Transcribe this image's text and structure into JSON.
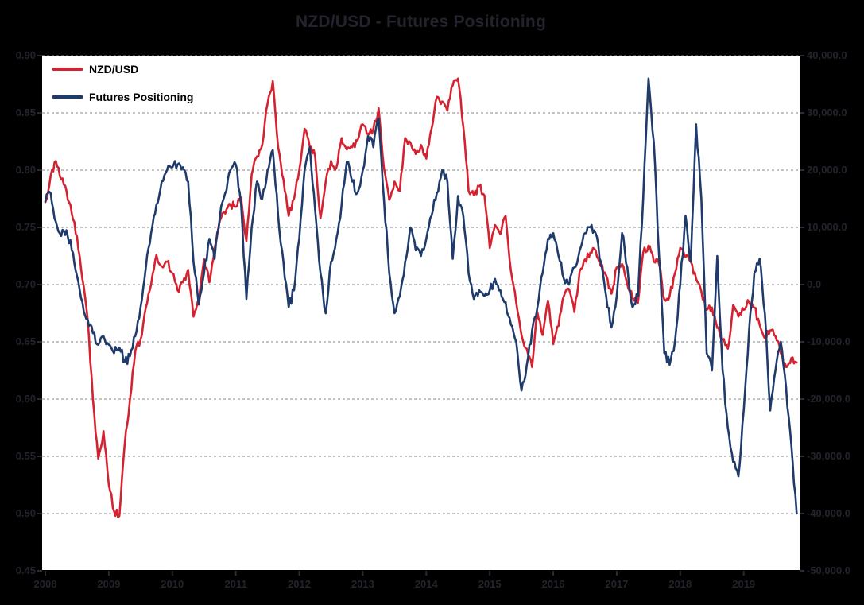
{
  "style": {
    "page_bg": "#000000",
    "plot_bg": "#ffffff",
    "outside_text": "#23232e",
    "grid_color": "#8a8a8a",
    "axis_line_color": "#000000",
    "tick_color": "#2b2b35",
    "legend_text": "#000000"
  },
  "chart_data": {
    "type": "line",
    "title": "NZD/USD - Futures Positioning",
    "legend": {
      "position": "top-left-inside",
      "entries": [
        "NZD/USD",
        "Futures Positioning"
      ]
    },
    "grid": {
      "horizontal": true,
      "style": "dashed"
    },
    "x_axis": {
      "tick_labels": [
        "2008",
        "2009",
        "2010",
        "2011",
        "2012",
        "2013",
        "2014",
        "2015",
        "2016",
        "2017",
        "2018",
        "2019"
      ],
      "range_start": 2007.95,
      "range_end": 2019.88
    },
    "left_y_axis": {
      "series": "NZD/USD",
      "min": 0.45,
      "max": 0.9,
      "tick_step": 0.05,
      "tick_labels": [
        "0.90",
        "0.85",
        "0.80",
        "0.75",
        "0.70",
        "0.65",
        "0.60",
        "0.55",
        "0.50",
        "0.45"
      ]
    },
    "right_y_axis": {
      "series": "Futures Positioning",
      "min": -50000,
      "max": 40000,
      "tick_step": 10000,
      "tick_labels": [
        "40,000.0",
        "30,000.0",
        "20,000.0",
        "10,000.0",
        "0.0",
        "-10,000.0",
        "-20,000.0",
        "-30,000.0",
        "-40,000.0",
        "-50,000.0"
      ]
    },
    "series": [
      {
        "name": "NZD/USD",
        "axis": "left",
        "color": "#d52231",
        "start_year": 2008,
        "points_per_year": 12,
        "values": [
          0.772,
          0.795,
          0.808,
          0.792,
          0.782,
          0.762,
          0.742,
          0.705,
          0.67,
          0.6,
          0.548,
          0.572,
          0.525,
          0.502,
          0.498,
          0.56,
          0.6,
          0.642,
          0.652,
          0.68,
          0.7,
          0.726,
          0.716,
          0.72,
          0.71,
          0.695,
          0.702,
          0.713,
          0.672,
          0.688,
          0.722,
          0.702,
          0.732,
          0.756,
          0.762,
          0.77,
          0.768,
          0.776,
          0.738,
          0.796,
          0.812,
          0.822,
          0.858,
          0.878,
          0.82,
          0.792,
          0.76,
          0.775,
          0.8,
          0.836,
          0.82,
          0.812,
          0.758,
          0.79,
          0.808,
          0.802,
          0.828,
          0.818,
          0.82,
          0.826,
          0.84,
          0.832,
          0.836,
          0.854,
          0.802,
          0.774,
          0.79,
          0.782,
          0.828,
          0.824,
          0.814,
          0.822,
          0.81,
          0.836,
          0.864,
          0.86,
          0.852,
          0.874,
          0.88,
          0.838,
          0.782,
          0.778,
          0.786,
          0.778,
          0.732,
          0.752,
          0.744,
          0.76,
          0.712,
          0.684,
          0.656,
          0.644,
          0.628,
          0.676,
          0.656,
          0.686,
          0.648,
          0.664,
          0.69,
          0.696,
          0.676,
          0.712,
          0.722,
          0.728,
          0.73,
          0.716,
          0.708,
          0.692,
          0.715,
          0.718,
          0.7,
          0.688,
          0.684,
          0.728,
          0.734,
          0.72,
          0.718,
          0.687,
          0.69,
          0.71,
          0.732,
          0.724,
          0.72,
          0.705,
          0.694,
          0.678,
          0.68,
          0.662,
          0.652,
          0.644,
          0.682,
          0.672,
          0.678,
          0.685,
          0.68,
          0.665,
          0.653,
          0.66,
          0.655,
          0.64,
          0.628,
          0.636,
          0.632
        ]
      },
      {
        "name": "Futures Positioning",
        "axis": "right",
        "color": "#1f3b6b",
        "start_year": 2008,
        "points_per_year": 12,
        "values": [
          14500,
          16000,
          11000,
          8500,
          9500,
          6000,
          1500,
          -3000,
          -6000,
          -8500,
          -10500,
          -9000,
          -10500,
          -12000,
          -11000,
          -13500,
          -12500,
          -9000,
          -4000,
          3000,
          9000,
          14000,
          18000,
          20000,
          20500,
          21000,
          20500,
          18000,
          4000,
          -3500,
          2000,
          8000,
          4500,
          12000,
          16000,
          20000,
          21000,
          14000,
          -2500,
          10000,
          18000,
          15000,
          20000,
          23500,
          12000,
          4000,
          -4000,
          -1000,
          8000,
          20000,
          24000,
          13000,
          2000,
          -5000,
          4000,
          8000,
          14000,
          21500,
          18000,
          16000,
          20000,
          26000,
          24000,
          29000,
          15000,
          2000,
          -5000,
          -2000,
          4000,
          10000,
          6000,
          5000,
          8000,
          12000,
          16000,
          20000,
          18000,
          4500,
          15500,
          12000,
          2000,
          -2500,
          -1000,
          -2000,
          -1000,
          1000,
          -1000,
          -3000,
          -7000,
          -10000,
          -18500,
          -14000,
          -8000,
          -4000,
          2000,
          8000,
          9000,
          5000,
          1000,
          0,
          3000,
          6000,
          9000,
          10000,
          9000,
          4000,
          -2000,
          -7500,
          -2000,
          9000,
          3000,
          -4000,
          -2000,
          15000,
          36000,
          25000,
          5000,
          -12000,
          -14000,
          -10000,
          0,
          12000,
          4000,
          28000,
          15000,
          -12000,
          -15000,
          5000,
          -15000,
          -25000,
          -31000,
          -33500,
          -22000,
          -8000,
          2000,
          4500,
          -5000,
          -22000,
          -15000,
          -10000,
          -18000,
          -28000,
          -40000
        ]
      }
    ]
  }
}
